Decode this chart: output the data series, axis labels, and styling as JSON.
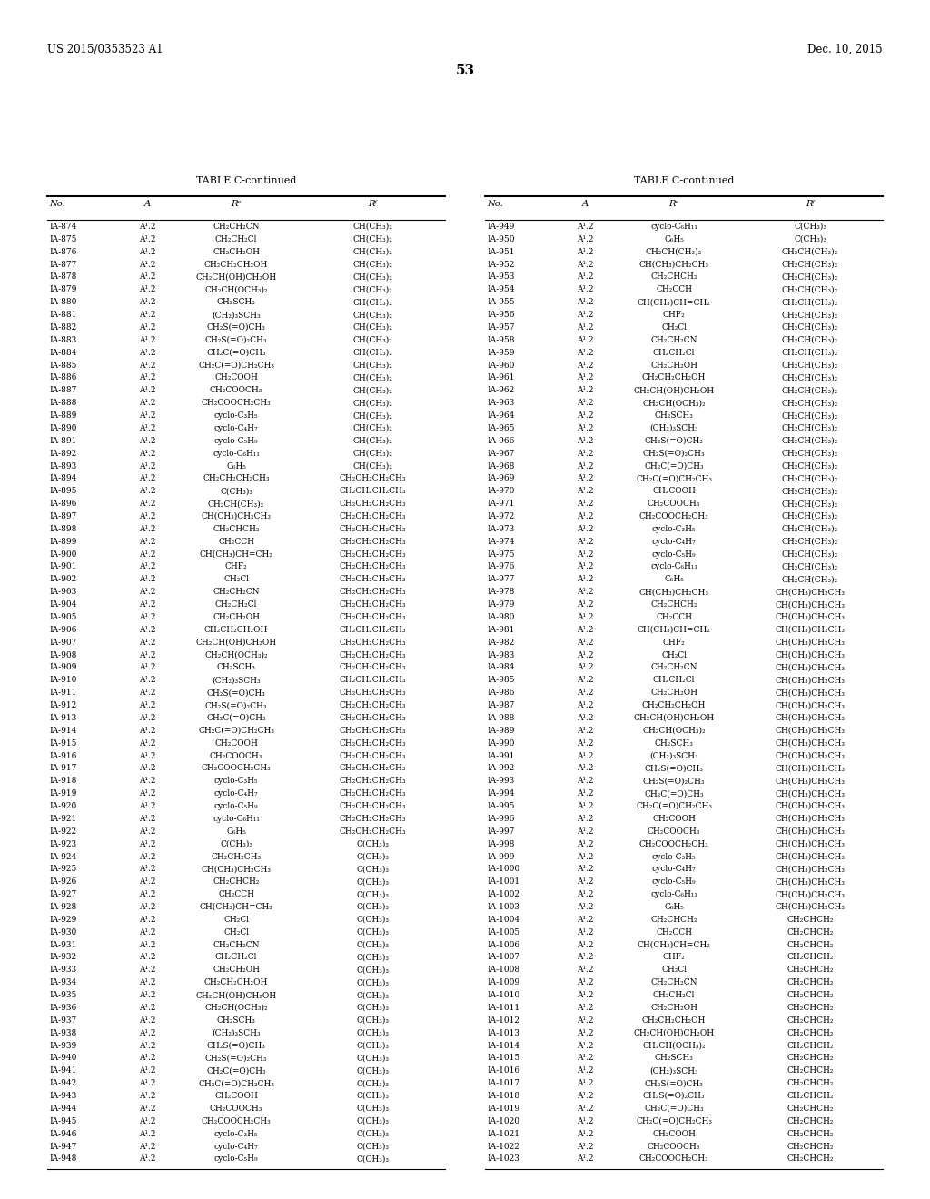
{
  "header_left": "US 2015/0353523 A1",
  "header_right": "Dec. 10, 2015",
  "page_number": "53",
  "table_title": "TABLE C-continued",
  "left_table": [
    [
      "IA-874",
      "A¹.2",
      "CH₂CH₂CN",
      "CH(CH₃)₂"
    ],
    [
      "IA-875",
      "A¹.2",
      "CH₂CH₂Cl",
      "CH(CH₃)₂"
    ],
    [
      "IA-876",
      "A¹.2",
      "CH₂CH₂OH",
      "CH(CH₃)₂"
    ],
    [
      "IA-877",
      "A¹.2",
      "CH₂CH₂CH₂OH",
      "CH(CH₃)₂"
    ],
    [
      "IA-878",
      "A¹.2",
      "CH₂CH(OH)CH₂OH",
      "CH(CH₃)₂"
    ],
    [
      "IA-879",
      "A¹.2",
      "CH₂CH(OCH₃)₂",
      "CH(CH₃)₂"
    ],
    [
      "IA-880",
      "A¹.2",
      "CH₂SCH₃",
      "CH(CH₃)₂"
    ],
    [
      "IA-881",
      "A¹.2",
      "(CH₂)₃SCH₃",
      "CH(CH₃)₂"
    ],
    [
      "IA-882",
      "A¹.2",
      "CH₂S(=O)CH₃",
      "CH(CH₃)₂"
    ],
    [
      "IA-883",
      "A¹.2",
      "CH₂S(=O)₂CH₃",
      "CH(CH₃)₂"
    ],
    [
      "IA-884",
      "A¹.2",
      "CH₂C(=O)CH₃",
      "CH(CH₃)₂"
    ],
    [
      "IA-885",
      "A¹.2",
      "CH₂C(=O)CH₂CH₃",
      "CH(CH₃)₂"
    ],
    [
      "IA-886",
      "A¹.2",
      "CH₂COOH",
      "CH(CH₃)₂"
    ],
    [
      "IA-887",
      "A¹.2",
      "CH₂COOCH₃",
      "CH(CH₃)₂"
    ],
    [
      "IA-888",
      "A¹.2",
      "CH₂COOCH₂CH₃",
      "CH(CH₃)₂"
    ],
    [
      "IA-889",
      "A¹.2",
      "cyclo-C₃H₅",
      "CH(CH₃)₂"
    ],
    [
      "IA-890",
      "A¹.2",
      "cyclo-C₄H₇",
      "CH(CH₃)₂"
    ],
    [
      "IA-891",
      "A¹.2",
      "cyclo-C₅H₉",
      "CH(CH₃)₂"
    ],
    [
      "IA-892",
      "A¹.2",
      "cyclo-C₆H₁₁",
      "CH(CH₃)₂"
    ],
    [
      "IA-893",
      "A¹.2",
      "C₆H₅",
      "CH(CH₃)₂"
    ],
    [
      "IA-894",
      "A¹.2",
      "CH₂CH₂CH₂CH₃",
      "CH₂CH₂CH₂CH₃"
    ],
    [
      "IA-895",
      "A¹.2",
      "C(CH₃)₃",
      "CH₂CH₂CH₂CH₃"
    ],
    [
      "IA-896",
      "A¹.2",
      "CH₂CH(CH₃)₂",
      "CH₂CH₂CH₂CH₃"
    ],
    [
      "IA-897",
      "A¹.2",
      "CH(CH₃)CH₂CH₃",
      "CH₂CH₂CH₂CH₃"
    ],
    [
      "IA-898",
      "A¹.2",
      "CH₂CHCH₂",
      "CH₂CH₂CH₂CH₃"
    ],
    [
      "IA-899",
      "A¹.2",
      "CH₂CCH",
      "CH₂CH₂CH₂CH₃"
    ],
    [
      "IA-900",
      "A¹.2",
      "CH(CH₃)CH=CH₂",
      "CH₂CH₂CH₂CH₃"
    ],
    [
      "IA-901",
      "A¹.2",
      "CHF₂",
      "CH₂CH₂CH₂CH₃"
    ],
    [
      "IA-902",
      "A¹.2",
      "CH₂Cl",
      "CH₂CH₂CH₂CH₃"
    ],
    [
      "IA-903",
      "A¹.2",
      "CH₂CH₂CN",
      "CH₂CH₂CH₂CH₃"
    ],
    [
      "IA-904",
      "A¹.2",
      "CH₂CH₂Cl",
      "CH₂CH₂CH₂CH₃"
    ],
    [
      "IA-905",
      "A¹.2",
      "CH₂CH₂OH",
      "CH₂CH₂CH₂CH₃"
    ],
    [
      "IA-906",
      "A¹.2",
      "CH₂CH₂CH₂OH",
      "CH₂CH₂CH₂CH₃"
    ],
    [
      "IA-907",
      "A¹.2",
      "CH₂CH(OH)CH₂OH",
      "CH₂CH₂CH₂CH₃"
    ],
    [
      "IA-908",
      "A¹.2",
      "CH₂CH(OCH₃)₂",
      "CH₂CH₂CH₂CH₃"
    ],
    [
      "IA-909",
      "A¹.2",
      "CH₂SCH₃",
      "CH₂CH₂CH₂CH₃"
    ],
    [
      "IA-910",
      "A¹.2",
      "(CH₂)₃SCH₃",
      "CH₂CH₂CH₂CH₃"
    ],
    [
      "IA-911",
      "A¹.2",
      "CH₂S(=O)CH₃",
      "CH₂CH₂CH₂CH₃"
    ],
    [
      "IA-912",
      "A¹.2",
      "CH₂S(=O)₂CH₃",
      "CH₂CH₂CH₂CH₃"
    ],
    [
      "IA-913",
      "A¹.2",
      "CH₂C(=O)CH₃",
      "CH₂CH₂CH₂CH₃"
    ],
    [
      "IA-914",
      "A¹.2",
      "CH₂C(=O)CH₂CH₃",
      "CH₂CH₂CH₂CH₃"
    ],
    [
      "IA-915",
      "A¹.2",
      "CH₂COOH",
      "CH₂CH₂CH₂CH₃"
    ],
    [
      "IA-916",
      "A¹.2",
      "CH₂COOCH₃",
      "CH₂CH₂CH₂CH₃"
    ],
    [
      "IA-917",
      "A¹.2",
      "CH₂COOCH₂CH₃",
      "CH₂CH₂CH₂CH₃"
    ],
    [
      "IA-918",
      "A¹.2",
      "cyclo-C₃H₅",
      "CH₂CH₂CH₂CH₃"
    ],
    [
      "IA-919",
      "A¹.2",
      "cyclo-C₄H₇",
      "CH₂CH₂CH₂CH₃"
    ],
    [
      "IA-920",
      "A¹.2",
      "cyclo-C₅H₉",
      "CH₂CH₂CH₂CH₃"
    ],
    [
      "IA-921",
      "A¹.2",
      "cyclo-C₆H₁₁",
      "CH₂CH₂CH₂CH₃"
    ],
    [
      "IA-922",
      "A¹.2",
      "C₆H₅",
      "CH₂CH₂CH₂CH₃"
    ],
    [
      "IA-923",
      "A¹.2",
      "C(CH₃)₃",
      "C(CH₃)₃"
    ],
    [
      "IA-924",
      "A¹.2",
      "CH₂CH₂CH₃",
      "C(CH₃)₃"
    ],
    [
      "IA-925",
      "A¹.2",
      "CH(CH₃)CH₂CH₃",
      "C(CH₃)₃"
    ],
    [
      "IA-926",
      "A¹.2",
      "CH₂CHCH₂",
      "C(CH₃)₃"
    ],
    [
      "IA-927",
      "A¹.2",
      "CH₂CCH",
      "C(CH₃)₃"
    ],
    [
      "IA-928",
      "A¹.2",
      "CH(CH₃)CH=CH₂",
      "C(CH₃)₃"
    ],
    [
      "IA-929",
      "A¹.2",
      "CH₂Cl",
      "C(CH₃)₃"
    ],
    [
      "IA-930",
      "A¹.2",
      "CH₂Cl",
      "C(CH₃)₃"
    ],
    [
      "IA-931",
      "A¹.2",
      "CH₂CH₂CN",
      "C(CH₃)₃"
    ],
    [
      "IA-932",
      "A¹.2",
      "CH₂CH₂Cl",
      "C(CH₃)₃"
    ],
    [
      "IA-933",
      "A¹.2",
      "CH₂CH₂OH",
      "C(CH₃)₃"
    ],
    [
      "IA-934",
      "A¹.2",
      "CH₂CH₂CH₂OH",
      "C(CH₃)₃"
    ],
    [
      "IA-935",
      "A¹.2",
      "CH₂CH(OH)CH₂OH",
      "C(CH₃)₃"
    ],
    [
      "IA-936",
      "A¹.2",
      "CH₂CH(OCH₃)₂",
      "C(CH₃)₃"
    ],
    [
      "IA-937",
      "A¹.2",
      "CH₂SCH₃",
      "C(CH₃)₃"
    ],
    [
      "IA-938",
      "A¹.2",
      "(CH₂)₃SCH₃",
      "C(CH₃)₃"
    ],
    [
      "IA-939",
      "A¹.2",
      "CH₂S(=O)CH₃",
      "C(CH₃)₃"
    ],
    [
      "IA-940",
      "A¹.2",
      "CH₂S(=O)₂CH₃",
      "C(CH₃)₃"
    ],
    [
      "IA-941",
      "A¹.2",
      "CH₂C(=O)CH₃",
      "C(CH₃)₃"
    ],
    [
      "IA-942",
      "A¹.2",
      "CH₂C(=O)CH₂CH₃",
      "C(CH₃)₃"
    ],
    [
      "IA-943",
      "A¹.2",
      "CH₂COOH",
      "C(CH₃)₃"
    ],
    [
      "IA-944",
      "A¹.2",
      "CH₂COOCH₃",
      "C(CH₃)₃"
    ],
    [
      "IA-945",
      "A¹.2",
      "CH₂COOCH₂CH₃",
      "C(CH₃)₃"
    ],
    [
      "IA-946",
      "A¹.2",
      "cyclo-C₃H₅",
      "C(CH₃)₃"
    ],
    [
      "IA-947",
      "A¹.2",
      "cyclo-C₄H₇",
      "C(CH₃)₃"
    ],
    [
      "IA-948",
      "A¹.2",
      "cyclo-C₅H₉",
      "C(CH₃)₃"
    ]
  ],
  "right_table": [
    [
      "IA-949",
      "A¹.2",
      "cyclo-C₆H₁₁",
      "C(CH₃)₃"
    ],
    [
      "IA-950",
      "A¹.2",
      "C₆H₅",
      "C(CH₃)₃"
    ],
    [
      "IA-951",
      "A¹.2",
      "CH₂CH(CH₃)₂",
      "CH₂CH(CH₃)₂"
    ],
    [
      "IA-952",
      "A¹.2",
      "CH(CH₃)CH₂CH₃",
      "CH₂CH(CH₃)₂"
    ],
    [
      "IA-953",
      "A¹.2",
      "CH₂CHCH₂",
      "CH₂CH(CH₃)₂"
    ],
    [
      "IA-954",
      "A¹.2",
      "CH₂CCH",
      "CH₂CH(CH₃)₂"
    ],
    [
      "IA-955",
      "A¹.2",
      "CH(CH₃)CH=CH₂",
      "CH₂CH(CH₃)₂"
    ],
    [
      "IA-956",
      "A¹.2",
      "CHF₂",
      "CH₂CH(CH₃)₂"
    ],
    [
      "IA-957",
      "A¹.2",
      "CH₂Cl",
      "CH₂CH(CH₃)₂"
    ],
    [
      "IA-958",
      "A¹.2",
      "CH₂CH₂CN",
      "CH₂CH(CH₃)₂"
    ],
    [
      "IA-959",
      "A¹.2",
      "CH₂CH₂Cl",
      "CH₂CH(CH₃)₂"
    ],
    [
      "IA-960",
      "A¹.2",
      "CH₂CH₂OH",
      "CH₂CH(CH₃)₂"
    ],
    [
      "IA-961",
      "A¹.2",
      "CH₂CH₂CH₂OH",
      "CH₂CH(CH₃)₂"
    ],
    [
      "IA-962",
      "A¹.2",
      "CH₂CH(OH)CH₂OH",
      "CH₂CH(CH₃)₂"
    ],
    [
      "IA-963",
      "A¹.2",
      "CH₂CH(OCH₃)₂",
      "CH₂CH(CH₃)₂"
    ],
    [
      "IA-964",
      "A¹.2",
      "CH₂SCH₃",
      "CH₂CH(CH₃)₂"
    ],
    [
      "IA-965",
      "A¹.2",
      "(CH₂)₃SCH₃",
      "CH₂CH(CH₃)₂"
    ],
    [
      "IA-966",
      "A¹.2",
      "CH₂S(=O)CH₃",
      "CH₂CH(CH₃)₂"
    ],
    [
      "IA-967",
      "A¹.2",
      "CH₂S(=O)₂CH₃",
      "CH₂CH(CH₃)₂"
    ],
    [
      "IA-968",
      "A¹.2",
      "CH₂C(=O)CH₃",
      "CH₂CH(CH₃)₂"
    ],
    [
      "IA-969",
      "A¹.2",
      "CH₂C(=O)CH₂CH₃",
      "CH₂CH(CH₃)₂"
    ],
    [
      "IA-970",
      "A¹.2",
      "CH₂COOH",
      "CH₂CH(CH₃)₂"
    ],
    [
      "IA-971",
      "A¹.2",
      "CH₂COOCH₃",
      "CH₂CH(CH₃)₂"
    ],
    [
      "IA-972",
      "A¹.2",
      "CH₂COOCH₂CH₃",
      "CH₂CH(CH₃)₂"
    ],
    [
      "IA-973",
      "A¹.2",
      "cyclo-C₃H₅",
      "CH₂CH(CH₃)₂"
    ],
    [
      "IA-974",
      "A¹.2",
      "cyclo-C₄H₇",
      "CH₂CH(CH₃)₂"
    ],
    [
      "IA-975",
      "A¹.2",
      "cyclo-C₅H₉",
      "CH₂CH(CH₃)₂"
    ],
    [
      "IA-976",
      "A¹.2",
      "cyclo-C₆H₁₁",
      "CH₂CH(CH₃)₂"
    ],
    [
      "IA-977",
      "A¹.2",
      "C₆H₅",
      "CH₂CH(CH₃)₂"
    ],
    [
      "IA-978",
      "A¹.2",
      "CH(CH₃)CH₂CH₃",
      "CH(CH₃)CH₂CH₃"
    ],
    [
      "IA-979",
      "A¹.2",
      "CH₂CHCH₂",
      "CH(CH₃)CH₂CH₃"
    ],
    [
      "IA-980",
      "A¹.2",
      "CH₂CCH",
      "CH(CH₃)CH₂CH₃"
    ],
    [
      "IA-981",
      "A¹.2",
      "CH(CH₃)CH=CH₂",
      "CH(CH₃)CH₂CH₃"
    ],
    [
      "IA-982",
      "A¹.2",
      "CHF₂",
      "CH(CH₃)CH₂CH₃"
    ],
    [
      "IA-983",
      "A¹.2",
      "CH₂Cl",
      "CH(CH₃)CH₂CH₃"
    ],
    [
      "IA-984",
      "A¹.2",
      "CH₂CH₂CN",
      "CH(CH₃)CH₂CH₃"
    ],
    [
      "IA-985",
      "A¹.2",
      "CH₂CH₂Cl",
      "CH(CH₃)CH₂CH₃"
    ],
    [
      "IA-986",
      "A¹.2",
      "CH₂CH₂OH",
      "CH(CH₃)CH₂CH₃"
    ],
    [
      "IA-987",
      "A¹.2",
      "CH₂CH₂CH₂OH",
      "CH(CH₃)CH₂CH₃"
    ],
    [
      "IA-988",
      "A¹.2",
      "CH₂CH(OH)CH₂OH",
      "CH(CH₃)CH₂CH₃"
    ],
    [
      "IA-989",
      "A¹.2",
      "CH₂CH(OCH₃)₂",
      "CH(CH₃)CH₂CH₃"
    ],
    [
      "IA-990",
      "A¹.2",
      "CH₂SCH₃",
      "CH(CH₃)CH₂CH₃"
    ],
    [
      "IA-991",
      "A¹.2",
      "(CH₂)₃SCH₃",
      "CH(CH₃)CH₂CH₃"
    ],
    [
      "IA-992",
      "A¹.2",
      "CH₂S(=O)CH₃",
      "CH(CH₃)CH₂CH₃"
    ],
    [
      "IA-993",
      "A¹.2",
      "CH₂S(=O)₂CH₃",
      "CH(CH₃)CH₂CH₃"
    ],
    [
      "IA-994",
      "A¹.2",
      "CH₂C(=O)CH₃",
      "CH(CH₃)CH₂CH₃"
    ],
    [
      "IA-995",
      "A¹.2",
      "CH₂C(=O)CH₂CH₃",
      "CH(CH₃)CH₂CH₃"
    ],
    [
      "IA-996",
      "A¹.2",
      "CH₂COOH",
      "CH(CH₃)CH₂CH₃"
    ],
    [
      "IA-997",
      "A¹.2",
      "CH₂COOCH₃",
      "CH(CH₃)CH₂CH₃"
    ],
    [
      "IA-998",
      "A¹.2",
      "CH₂COOCH₂CH₃",
      "CH(CH₃)CH₂CH₃"
    ],
    [
      "IA-999",
      "A¹.2",
      "cyclo-C₃H₅",
      "CH(CH₃)CH₂CH₃"
    ],
    [
      "IA-1000",
      "A¹.2",
      "cyclo-C₄H₇",
      "CH(CH₃)CH₂CH₃"
    ],
    [
      "IA-1001",
      "A¹.2",
      "cyclo-C₅H₉",
      "CH(CH₃)CH₂CH₃"
    ],
    [
      "IA-1002",
      "A¹.2",
      "cyclo-C₆H₁₁",
      "CH(CH₃)CH₂CH₃"
    ],
    [
      "IA-1003",
      "A¹.2",
      "C₆H₅",
      "CH(CH₃)CH₂CH₃"
    ],
    [
      "IA-1004",
      "A¹.2",
      "CH₂CHCH₂",
      "CH₂CHCH₂"
    ],
    [
      "IA-1005",
      "A¹.2",
      "CH₂CCH",
      "CH₂CHCH₂"
    ],
    [
      "IA-1006",
      "A¹.2",
      "CH(CH₃)CH=CH₂",
      "CH₂CHCH₂"
    ],
    [
      "IA-1007",
      "A¹.2",
      "CHF₂",
      "CH₂CHCH₂"
    ],
    [
      "IA-1008",
      "A¹.2",
      "CH₂Cl",
      "CH₂CHCH₂"
    ],
    [
      "IA-1009",
      "A¹.2",
      "CH₂CH₂CN",
      "CH₂CHCH₂"
    ],
    [
      "IA-1010",
      "A¹.2",
      "CH₂CH₂Cl",
      "CH₂CHCH₂"
    ],
    [
      "IA-1011",
      "A¹.2",
      "CH₂CH₂OH",
      "CH₂CHCH₂"
    ],
    [
      "IA-1012",
      "A¹.2",
      "CH₂CH₂CH₂OH",
      "CH₂CHCH₂"
    ],
    [
      "IA-1013",
      "A¹.2",
      "CH₂CH(OH)CH₂OH",
      "CH₂CHCH₂"
    ],
    [
      "IA-1014",
      "A¹.2",
      "CH₂CH(OCH₃)₂",
      "CH₂CHCH₂"
    ],
    [
      "IA-1015",
      "A¹.2",
      "CH₂SCH₃",
      "CH₂CHCH₂"
    ],
    [
      "IA-1016",
      "A¹.2",
      "(CH₂)₃SCH₃",
      "CH₂CHCH₂"
    ],
    [
      "IA-1017",
      "A¹.2",
      "CH₂S(=O)CH₃",
      "CH₂CHCH₂"
    ],
    [
      "IA-1018",
      "A¹.2",
      "CH₂S(=O)₂CH₃",
      "CH₂CHCH₂"
    ],
    [
      "IA-1019",
      "A¹.2",
      "CH₂C(=O)CH₃",
      "CH₂CHCH₂"
    ],
    [
      "IA-1020",
      "A¹.2",
      "CH₂C(=O)CH₂CH₃",
      "CH₂CHCH₂"
    ],
    [
      "IA-1021",
      "A¹.2",
      "CH₂COOH",
      "CH₂CHCH₂"
    ],
    [
      "IA-1022",
      "A¹.2",
      "CH₂COOCH₃",
      "CH₂CHCH₂"
    ],
    [
      "IA-1023",
      "A¹.2",
      "CH₂COOCH₂CH₃",
      "CH₂CHCH₂"
    ]
  ]
}
